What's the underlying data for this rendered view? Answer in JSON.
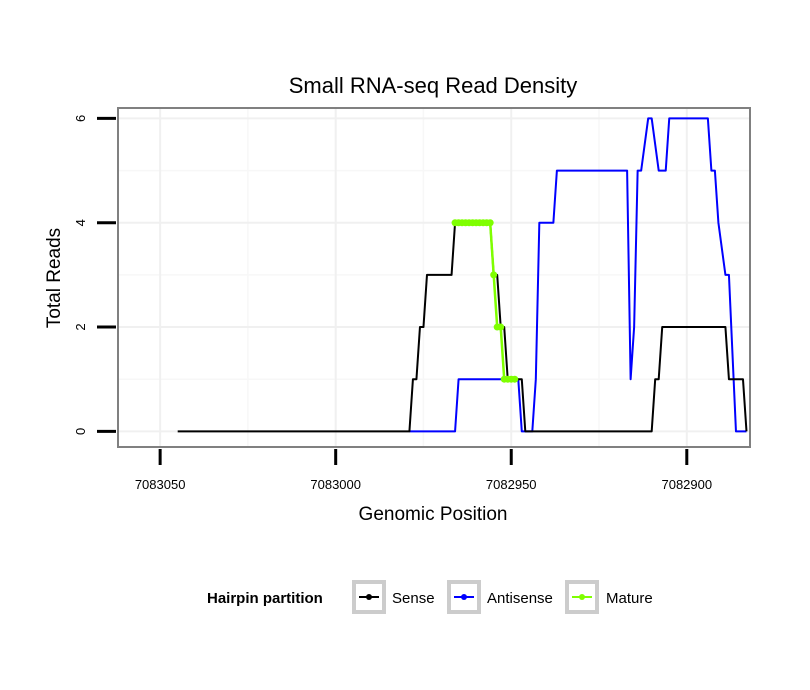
{
  "chart_data": {
    "type": "line",
    "title": "Small RNA-seq Read Density",
    "xlabel": "Genomic Position",
    "ylabel": "Total Reads",
    "x_reversed": true,
    "xlim": [
      7083062,
      7082882
    ],
    "ylim": [
      -0.3,
      6.2
    ],
    "xticks": [
      7083050,
      7083000,
      7082950,
      7082900
    ],
    "xtick_labels": [
      "7083050",
      "7083000",
      "7082950",
      "7082900"
    ],
    "yticks": [
      0,
      2,
      4,
      6
    ],
    "ytick_labels": [
      "0",
      "2",
      "4",
      "6"
    ],
    "grid": true,
    "legend": {
      "title": "Hairpin partition",
      "position": "bottom",
      "entries": [
        {
          "name": "Sense",
          "color": "#000000"
        },
        {
          "name": "Antisense",
          "color": "#0000ff"
        },
        {
          "name": "Mature",
          "color": "#7fff00"
        }
      ]
    },
    "series": [
      {
        "name": "Sense",
        "color": "#000000",
        "x": [
          7083045,
          7082979,
          7082978,
          7082977,
          7082976,
          7082975,
          7082974,
          7082973,
          7082967,
          7082966,
          7082956,
          7082955,
          7082954,
          7082953,
          7082952,
          7082951,
          7082950,
          7082949,
          7082948,
          7082947,
          7082946,
          7082945,
          7082944,
          7082910,
          7082909,
          7082908,
          7082907,
          7082906,
          7082889,
          7082888,
          7082884,
          7082883
        ],
        "y": [
          0,
          0,
          1,
          1,
          2,
          2,
          3,
          3,
          3,
          4,
          4,
          3,
          3,
          2,
          2,
          1,
          1,
          1,
          1,
          1,
          0,
          0,
          0,
          0,
          1,
          1,
          2,
          2,
          2,
          1,
          1,
          0
        ]
      },
      {
        "name": "Antisense",
        "color": "#0000ff",
        "x": [
          7082979,
          7082966,
          7082965,
          7082948,
          7082947,
          7082944,
          7082943,
          7082942,
          7082938,
          7082937,
          7082917,
          7082916,
          7082915,
          7082914,
          7082913,
          7082911,
          7082910,
          7082908,
          7082907,
          7082906,
          7082905,
          7082894,
          7082893,
          7082892,
          7082891,
          7082889,
          7082888,
          7082886,
          7082883
        ],
        "y": [
          0,
          0,
          1,
          1,
          0,
          0,
          1,
          4,
          4,
          5,
          5,
          1,
          2,
          5,
          5,
          6,
          6,
          5,
          5,
          5,
          6,
          6,
          5,
          5,
          4,
          3,
          3,
          0,
          0
        ]
      },
      {
        "name": "Mature",
        "color": "#7fff00",
        "x": [
          7082966,
          7082965,
          7082964,
          7082963,
          7082962,
          7082961,
          7082960,
          7082959,
          7082958,
          7082957,
          7082956,
          7082955,
          7082954,
          7082953,
          7082952,
          7082951,
          7082950,
          7082949
        ],
        "y": [
          4,
          4,
          4,
          4,
          4,
          4,
          4,
          4,
          4,
          4,
          4,
          3,
          2,
          2,
          1,
          1,
          1,
          1
        ]
      }
    ]
  }
}
